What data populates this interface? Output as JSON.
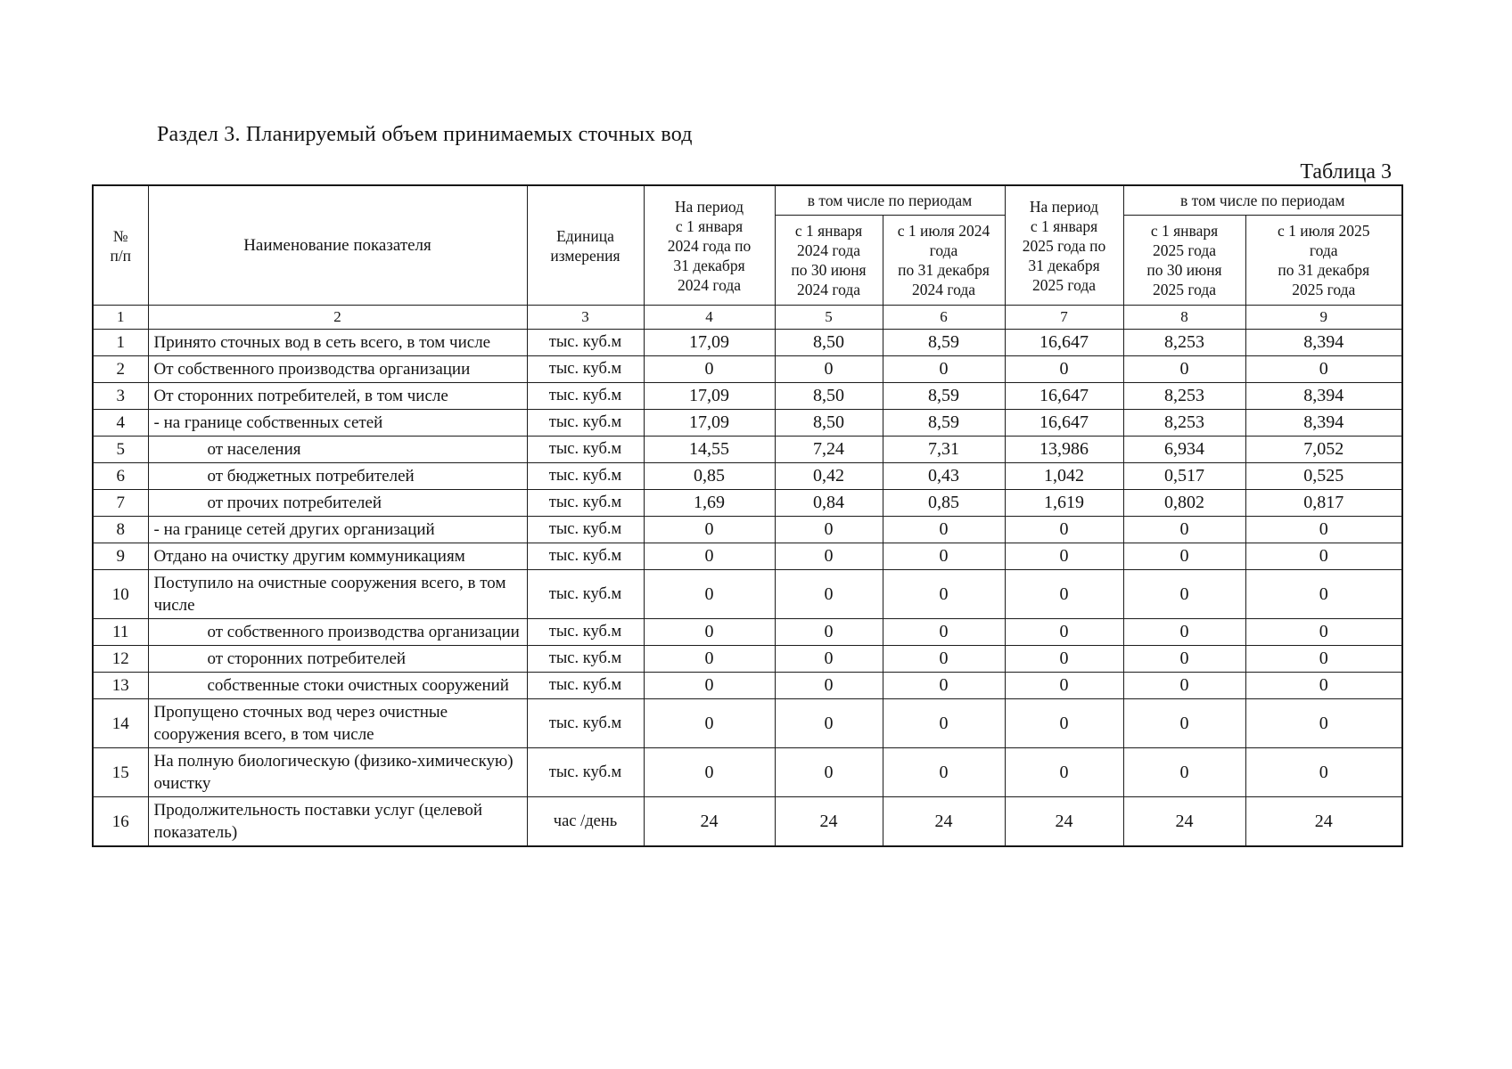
{
  "page": {
    "title": "Раздел 3. Планируемый объем принимаемых сточных вод",
    "table_label": "Таблица 3"
  },
  "table": {
    "header": {
      "col_num": "№\nп/п",
      "col_name": "Наименование показателя",
      "col_unit": "Единица\nизмерения",
      "period_2024": "На период\nс 1 января\n2024 года по\n31 декабря\n2024 года",
      "including_2024": "в том числе по периодам",
      "h1_2024": "с 1 января\n2024 года\nпо 30 июня\n2024 года",
      "h2_2024": "с 1 июля 2024\nгода\nпо 31 декабря\n2024 года",
      "period_2025": "На период\nс 1 января\n2025 года по\n31 декабря\n2025 года",
      "including_2025": "в том числе по периодам",
      "h1_2025": "с 1 января\n2025 года\nпо 30 июня\n2025 года",
      "h2_2025": "с 1 июля 2025\nгода\nпо 31 декабря\n2025 года",
      "column_numbers": [
        "1",
        "2",
        "3",
        "4",
        "5",
        "6",
        "7",
        "8",
        "9"
      ]
    },
    "rows": [
      {
        "num": "1",
        "name": "Принято сточных вод в сеть всего, в том числе",
        "indent": 0,
        "unit": "тыс. куб.м",
        "values": [
          "17,09",
          "8,50",
          "8,59",
          "16,647",
          "8,253",
          "8,394"
        ]
      },
      {
        "num": "2",
        "name": "От собственного производства организации",
        "indent": 0,
        "unit": "тыс. куб.м",
        "values": [
          "0",
          "0",
          "0",
          "0",
          "0",
          "0"
        ]
      },
      {
        "num": "3",
        "name": "От сторонних потребителей, в том числе",
        "indent": 0,
        "unit": "тыс. куб.м",
        "values": [
          "17,09",
          "8,50",
          "8,59",
          "16,647",
          "8,253",
          "8,394"
        ]
      },
      {
        "num": "4",
        "name": "- на границе собственных сетей",
        "indent": 0,
        "unit": "тыс. куб.м",
        "values": [
          "17,09",
          "8,50",
          "8,59",
          "16,647",
          "8,253",
          "8,394"
        ]
      },
      {
        "num": "5",
        "name": "от населения",
        "indent": 1,
        "unit": "тыс. куб.м",
        "values": [
          "14,55",
          "7,24",
          "7,31",
          "13,986",
          "6,934",
          "7,052"
        ]
      },
      {
        "num": "6",
        "name": "от бюджетных потребителей",
        "indent": 1,
        "unit": "тыс. куб.м",
        "values": [
          "0,85",
          "0,42",
          "0,43",
          "1,042",
          "0,517",
          "0,525"
        ]
      },
      {
        "num": "7",
        "name": "от прочих потребителей",
        "indent": 1,
        "unit": "тыс. куб.м",
        "values": [
          "1,69",
          "0,84",
          "0,85",
          "1,619",
          "0,802",
          "0,817"
        ]
      },
      {
        "num": "8",
        "name": "- на границе сетей других организаций",
        "indent": 0,
        "unit": "тыс. куб.м",
        "values": [
          "0",
          "0",
          "0",
          "0",
          "0",
          "0"
        ]
      },
      {
        "num": "9",
        "name": "Отдано на очистку другим коммуникациям",
        "indent": 0,
        "unit": "тыс. куб.м",
        "values": [
          "0",
          "0",
          "0",
          "0",
          "0",
          "0"
        ]
      },
      {
        "num": "10",
        "name": "Поступило на очистные сооружения всего, в том числе",
        "indent": 0,
        "unit": "тыс. куб.м",
        "values": [
          "0",
          "0",
          "0",
          "0",
          "0",
          "0"
        ]
      },
      {
        "num": "11",
        "name": "от собственного производства организации",
        "indent": 1,
        "unit": "тыс. куб.м",
        "values": [
          "0",
          "0",
          "0",
          "0",
          "0",
          "0"
        ]
      },
      {
        "num": "12",
        "name": "от сторонних потребителей",
        "indent": 1,
        "unit": "тыс. куб.м",
        "values": [
          "0",
          "0",
          "0",
          "0",
          "0",
          "0"
        ]
      },
      {
        "num": "13",
        "name": "собственные стоки очистных сооружений",
        "indent": 1,
        "unit": "тыс. куб.м",
        "values": [
          "0",
          "0",
          "0",
          "0",
          "0",
          "0"
        ]
      },
      {
        "num": "14",
        "name": "Пропущено сточных вод через очистные сооружения всего, в том числе",
        "indent": 0,
        "unit": "тыс. куб.м",
        "values": [
          "0",
          "0",
          "0",
          "0",
          "0",
          "0"
        ]
      },
      {
        "num": "15",
        "name": "На полную биологическую (физико-химическую) очистку",
        "indent": 0,
        "unit": "тыс. куб.м",
        "values": [
          "0",
          "0",
          "0",
          "0",
          "0",
          "0"
        ]
      },
      {
        "num": "16",
        "name": "Продолжительность поставки услуг (целевой показатель)",
        "indent": 0,
        "unit": "час /день",
        "values": [
          "24",
          "24",
          "24",
          "24",
          "24",
          "24"
        ]
      }
    ]
  }
}
